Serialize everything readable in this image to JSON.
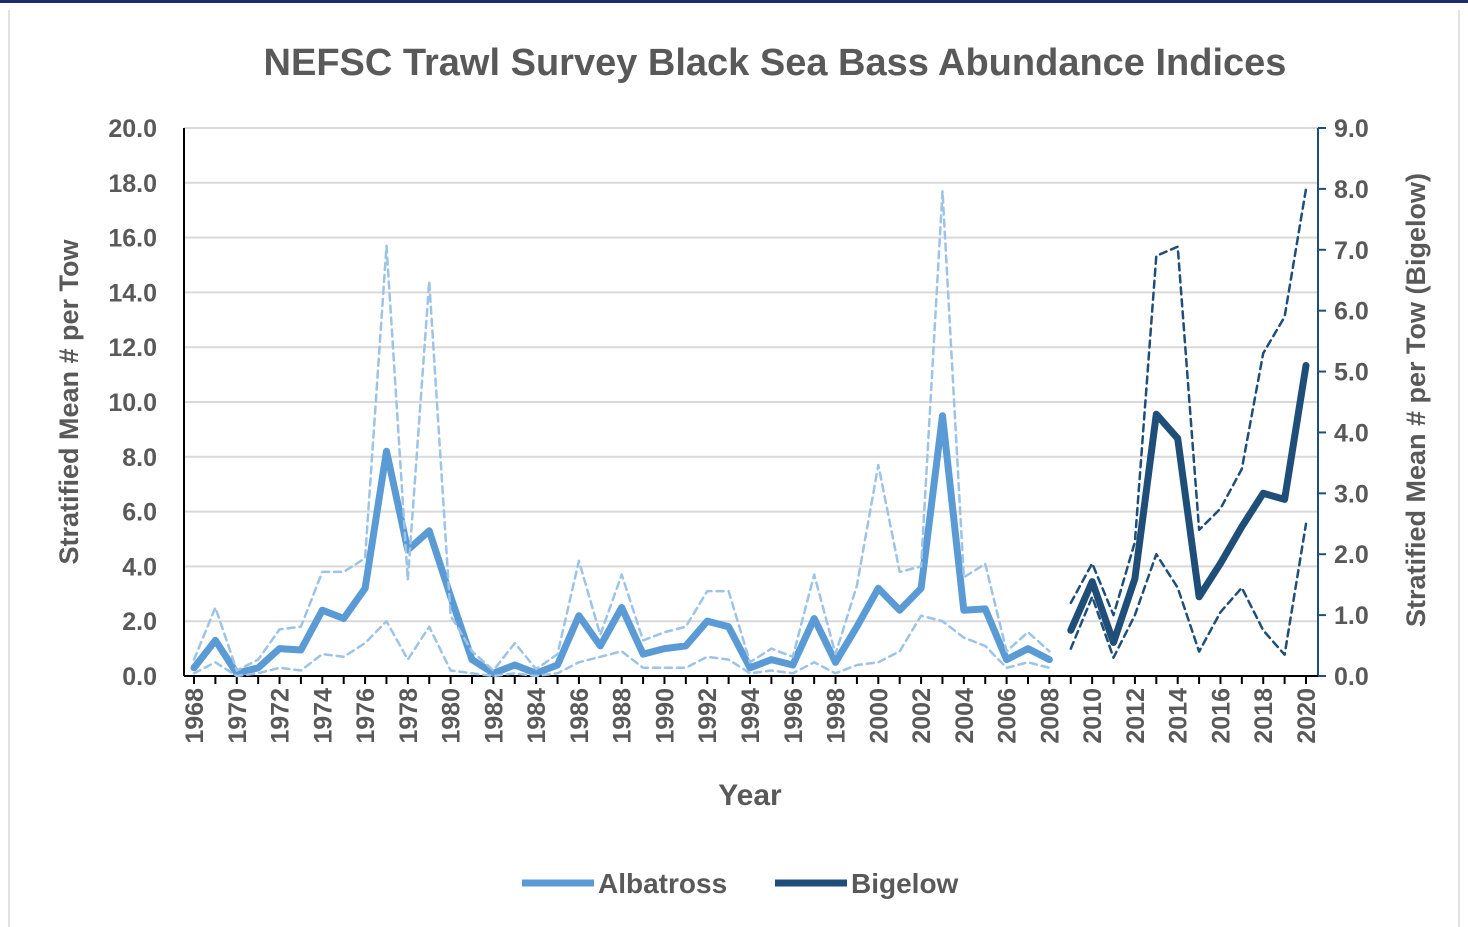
{
  "chart_data": {
    "type": "line",
    "title": "NEFSC Trawl Survey Black Sea Bass Abundance Indices",
    "xlabel": "Year",
    "ylabel": "Stratified Mean # per Tow",
    "y2label": "Stratified Mean # per Tow (Bigelow)",
    "ylim": [
      0,
      20
    ],
    "y2lim": [
      0,
      9
    ],
    "xlim": [
      1968,
      2020
    ],
    "grid": true,
    "legend": "bottom",
    "yticks": [
      "0.0",
      "2.0",
      "4.0",
      "6.0",
      "8.0",
      "10.0",
      "12.0",
      "14.0",
      "16.0",
      "18.0",
      "20.0"
    ],
    "y2ticks": [
      "0.0",
      "1.0",
      "2.0",
      "3.0",
      "4.0",
      "5.0",
      "6.0",
      "7.0",
      "8.0",
      "9.0"
    ],
    "xticks": [
      "1968",
      "1970",
      "1972",
      "1974",
      "1976",
      "1978",
      "1980",
      "1982",
      "1984",
      "1986",
      "1988",
      "1990",
      "1992",
      "1994",
      "1996",
      "1998",
      "2000",
      "2002",
      "2004",
      "2006",
      "2008",
      "2010",
      "2012",
      "2014",
      "2016",
      "2018",
      "2020"
    ],
    "colors": {
      "albatross": "#5b9bd5",
      "albatross_ci": "#9dc3e6",
      "bigelow": "#1f4e79"
    },
    "series": [
      {
        "name": "Albatross",
        "axis": "left",
        "x": [
          1968,
          1969,
          1970,
          1971,
          1972,
          1973,
          1974,
          1975,
          1976,
          1977,
          1978,
          1979,
          1980,
          1981,
          1982,
          1983,
          1984,
          1985,
          1986,
          1987,
          1988,
          1989,
          1990,
          1991,
          1992,
          1993,
          1994,
          1995,
          1996,
          1997,
          1998,
          1999,
          2000,
          2001,
          2002,
          2003,
          2004,
          2005,
          2006,
          2007,
          2008
        ],
        "values": [
          0.3,
          1.3,
          0.1,
          0.3,
          1.0,
          0.95,
          2.4,
          2.1,
          3.2,
          8.2,
          4.6,
          5.3,
          2.9,
          0.6,
          0.1,
          0.4,
          0.1,
          0.4,
          2.2,
          1.1,
          2.5,
          0.8,
          1.0,
          1.1,
          2.0,
          1.8,
          0.3,
          0.6,
          0.4,
          2.1,
          0.5,
          1.8,
          3.2,
          2.4,
          3.2,
          9.5,
          2.4,
          2.45,
          0.6,
          1.0,
          0.6
        ]
      },
      {
        "name": "",
        "axis": "left",
        "style": "dashed",
        "x": [
          1968,
          1969,
          1970,
          1971,
          1972,
          1973,
          1974,
          1975,
          1976,
          1977,
          1978,
          1979,
          1980,
          1981,
          1982,
          1983,
          1984,
          1985,
          1986,
          1987,
          1988,
          1989,
          1990,
          1991,
          1992,
          1993,
          1994,
          1995,
          1996,
          1997,
          1998,
          1999,
          2000,
          2001,
          2002,
          2003,
          2004,
          2005,
          2006,
          2007,
          2008
        ],
        "values": [
          0.6,
          2.5,
          0.2,
          0.6,
          1.7,
          1.8,
          3.8,
          3.8,
          4.3,
          15.7,
          3.5,
          14.4,
          2.2,
          0.9,
          0.2,
          1.2,
          0.25,
          0.8,
          4.2,
          1.5,
          3.7,
          1.3,
          1.6,
          1.8,
          3.1,
          3.1,
          0.5,
          1.0,
          0.7,
          3.7,
          0.8,
          3.3,
          7.7,
          3.8,
          4.0,
          17.7,
          3.6,
          4.1,
          0.9,
          1.6,
          0.9
        ]
      },
      {
        "name": "",
        "axis": "left",
        "style": "dashed",
        "x": [
          1968,
          1969,
          1970,
          1971,
          1972,
          1973,
          1974,
          1975,
          1976,
          1977,
          1978,
          1979,
          1980,
          1981,
          1982,
          1983,
          1984,
          1985,
          1986,
          1987,
          1988,
          1989,
          1990,
          1991,
          1992,
          1993,
          1994,
          1995,
          1996,
          1997,
          1998,
          1999,
          2000,
          2001,
          2002,
          2003,
          2004,
          2005,
          2006,
          2007,
          2008
        ],
        "values": [
          0.1,
          0.5,
          0.0,
          0.1,
          0.3,
          0.2,
          0.8,
          0.7,
          1.2,
          2.0,
          0.6,
          1.8,
          0.2,
          0.1,
          0.0,
          0.1,
          0.0,
          0.1,
          0.5,
          0.7,
          0.9,
          0.3,
          0.3,
          0.3,
          0.7,
          0.6,
          0.1,
          0.2,
          0.1,
          0.5,
          0.1,
          0.4,
          0.5,
          0.9,
          2.2,
          2.0,
          1.4,
          1.1,
          0.3,
          0.5,
          0.3
        ]
      },
      {
        "name": "Bigelow",
        "axis": "right",
        "x": [
          2009,
          2010,
          2011,
          2012,
          2013,
          2014,
          2015,
          2016,
          2017,
          2018,
          2019,
          2020
        ],
        "values": [
          0.75,
          1.55,
          0.55,
          1.6,
          4.3,
          3.9,
          1.3,
          1.85,
          2.45,
          3.0,
          2.9,
          5.1
        ]
      },
      {
        "name": "",
        "axis": "right",
        "style": "dashed",
        "x": [
          2009,
          2010,
          2011,
          2012,
          2013,
          2014,
          2015,
          2016,
          2017,
          2018,
          2019,
          2020
        ],
        "values": [
          1.2,
          1.85,
          1.0,
          2.2,
          6.9,
          7.05,
          2.4,
          2.75,
          3.4,
          5.3,
          5.9,
          8.0
        ]
      },
      {
        "name": "",
        "axis": "right",
        "style": "dashed",
        "x": [
          2009,
          2010,
          2011,
          2012,
          2013,
          2014,
          2015,
          2016,
          2017,
          2018,
          2019,
          2020
        ],
        "values": [
          0.45,
          1.3,
          0.3,
          1.0,
          2.0,
          1.45,
          0.4,
          1.05,
          1.45,
          0.75,
          0.35,
          2.5
        ]
      }
    ]
  }
}
